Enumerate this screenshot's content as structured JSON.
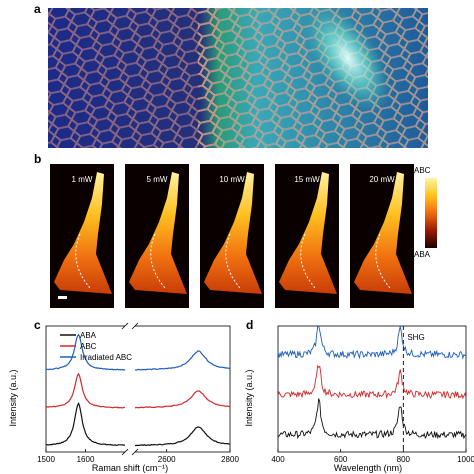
{
  "panels": {
    "a": "a",
    "b": "b",
    "c": "c",
    "d": "d"
  },
  "panel_b": {
    "maps": [
      {
        "power": "1 mW"
      },
      {
        "power": "5 mW"
      },
      {
        "power": "10 mW"
      },
      {
        "power": "15 mW"
      },
      {
        "power": "20 mW"
      }
    ],
    "colorbar": {
      "top": "ABC",
      "bottom": "ABA",
      "colors": [
        "#fff4a8",
        "#ffc21a",
        "#f06a10",
        "#9a1a06",
        "#1a0000"
      ]
    }
  },
  "chart_data": [
    {
      "type": "line",
      "panel": "c",
      "xlabel": "Raman shift (cm⁻¹)",
      "ylabel": "Intensity (a.u.)",
      "xlim": [
        1500,
        2800
      ],
      "axis_break": [
        1700,
        2500
      ],
      "x_ticks": [
        1500,
        1600,
        2600,
        2800
      ],
      "legend_position": "top-left",
      "series": [
        {
          "name": "ABA",
          "color": "#111111",
          "offset": 0,
          "peaks": [
            {
              "center": 1582,
              "height": 1.0
            },
            {
              "center": 2700,
              "height": 0.45
            }
          ]
        },
        {
          "name": "ABC",
          "color": "#d62728",
          "offset": 0.9,
          "peaks": [
            {
              "center": 1582,
              "height": 0.8
            },
            {
              "center": 2700,
              "height": 0.4
            }
          ]
        },
        {
          "name": "Irradiated ABC",
          "color": "#1f5fbf",
          "offset": 1.8,
          "peaks": [
            {
              "center": 1582,
              "height": 0.85
            },
            {
              "center": 2700,
              "height": 0.45
            }
          ]
        }
      ]
    },
    {
      "type": "line",
      "panel": "d",
      "xlabel": "Wavelength (nm)",
      "ylabel": "Intensity (a.u.)",
      "xlim": [
        400,
        1000
      ],
      "x_ticks": [
        400,
        600,
        800,
        1000
      ],
      "annotation": {
        "text": "SHG",
        "x": 800
      },
      "series": [
        {
          "color": "#111111",
          "offset": 0,
          "peaks": [
            {
              "center": 530,
              "height": 0.9
            },
            {
              "center": 790,
              "height": 0.8
            }
          ]
        },
        {
          "color": "#d62728",
          "offset": 1.05,
          "peaks": [
            {
              "center": 530,
              "height": 0.8
            },
            {
              "center": 790,
              "height": 0.6
            }
          ]
        },
        {
          "color": "#1f5fbf",
          "offset": 2.1,
          "peaks": [
            {
              "center": 530,
              "height": 0.8
            },
            {
              "center": 790,
              "height": 0.7
            }
          ]
        }
      ]
    }
  ]
}
